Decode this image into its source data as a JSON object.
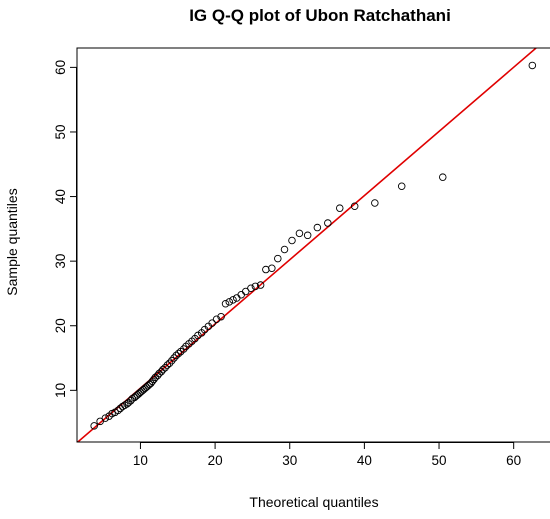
{
  "chart_data": {
    "type": "scatter",
    "title": "IG Q-Q plot of  Ubon Ratchathani",
    "xlabel": "Theoretical quantiles",
    "ylabel": "Sample quantiles",
    "xlim": [
      1.5,
      65
    ],
    "ylim": [
      2.0,
      63
    ],
    "xticks": [
      10,
      20,
      30,
      40,
      50,
      60
    ],
    "yticks": [
      10,
      20,
      30,
      40,
      50,
      60
    ],
    "grid": false,
    "colors": {
      "points": "#000000",
      "reference_line": "#e00000"
    },
    "reference_line": {
      "x": [
        1.2,
        63
      ],
      "y": [
        1.6,
        63
      ]
    },
    "series": [
      {
        "x": [
          3.8,
          4.6,
          5.3,
          5.8,
          6.2,
          6.6,
          7.0,
          7.3,
          7.6,
          7.9,
          8.2,
          8.4,
          8.7,
          8.9,
          9.2,
          9.4,
          9.6,
          9.8,
          10.0,
          10.2,
          10.4,
          10.6,
          10.8,
          11.0,
          11.2,
          11.4,
          11.6,
          11.8,
          12.0,
          12.3,
          12.5,
          12.8,
          13.0,
          13.3,
          13.6,
          13.9,
          14.2,
          14.5,
          14.8,
          15.1,
          15.4,
          15.8,
          16.1,
          16.5,
          16.9,
          17.3,
          17.7,
          18.2,
          18.6,
          19.1,
          19.6,
          20.2,
          20.8,
          21.4,
          21.9,
          22.4,
          22.9,
          23.5,
          24.1,
          24.8,
          25.4,
          26.1,
          26.8,
          27.6,
          28.4,
          29.3,
          30.3,
          31.3,
          32.4,
          33.7,
          35.1,
          36.7,
          38.7,
          41.4,
          45.0,
          50.5,
          62.5
        ],
        "y": [
          4.5,
          5.2,
          5.7,
          6.0,
          6.4,
          6.6,
          6.9,
          7.2,
          7.5,
          7.7,
          7.9,
          8.1,
          8.4,
          8.7,
          8.9,
          9.1,
          9.3,
          9.5,
          9.7,
          9.9,
          10.1,
          10.3,
          10.5,
          10.7,
          10.9,
          11.1,
          11.4,
          11.7,
          12.0,
          12.3,
          12.6,
          12.9,
          13.2,
          13.5,
          13.9,
          14.2,
          14.6,
          15.0,
          15.4,
          15.7,
          16.0,
          16.4,
          16.8,
          17.2,
          17.6,
          18.0,
          18.5,
          18.9,
          19.4,
          19.9,
          20.4,
          21.0,
          21.4,
          23.4,
          23.7,
          24.0,
          24.3,
          24.8,
          25.3,
          25.8,
          26.1,
          26.3,
          28.7,
          28.9,
          30.4,
          31.8,
          33.2,
          34.3,
          34.0,
          35.2,
          35.9,
          38.2,
          38.5,
          39.0,
          41.6,
          43.0,
          60.3
        ]
      }
    ]
  }
}
